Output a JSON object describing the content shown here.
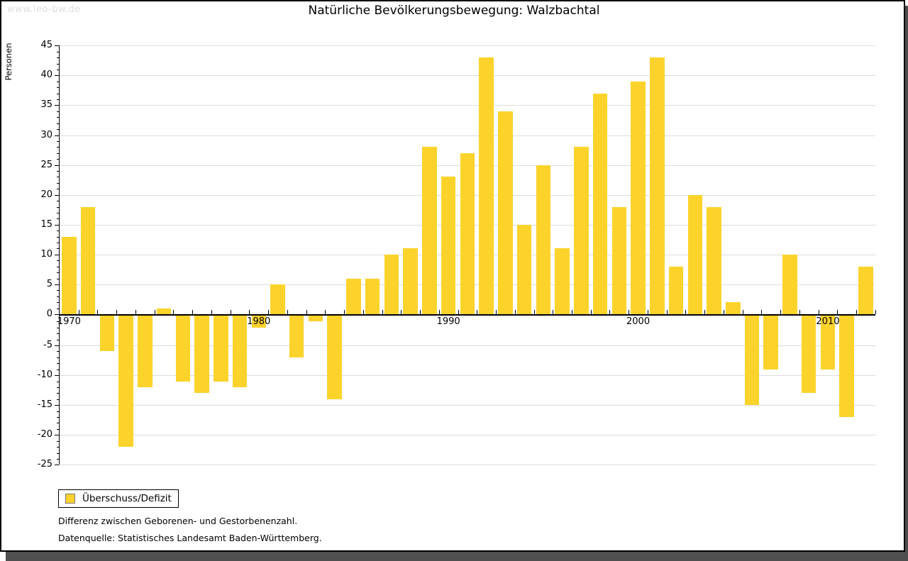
{
  "watermark": "www.leo-bw.de",
  "header": {
    "title": "Natürliche Bevölkerungsbewegung: Walzbachtal"
  },
  "legend": {
    "label": "Überschuss/Defizit"
  },
  "footnotes": [
    "Differenz zwischen Geborenen- und Gestorbenenzahl.",
    "Datenquelle: Statistisches Landesamt Baden-Württemberg."
  ],
  "colors": {
    "bar": "#fcd32b",
    "grid": "#dcdcdc",
    "axis": "#000000",
    "shadow": "#4f4f4f",
    "watermark_text": "#dedede",
    "legend_swatch_border": "#7a7a7a"
  },
  "chart_data": {
    "type": "bar",
    "title": "Natürliche Bevölkerungsbewegung: Walzbachtal",
    "xlabel": "",
    "ylabel": "Personen",
    "ylim": [
      -25,
      45
    ],
    "grid": "horizontal",
    "legend_position": "bottom-left",
    "series_name": "Überschuss/Defizit",
    "years": [
      1970,
      1971,
      1972,
      1973,
      1974,
      1975,
      1976,
      1977,
      1978,
      1979,
      1980,
      1981,
      1982,
      1983,
      1984,
      1985,
      1986,
      1987,
      1988,
      1989,
      1990,
      1991,
      1992,
      1993,
      1994,
      1995,
      1996,
      1997,
      1998,
      1999,
      2000,
      2001,
      2002,
      2003,
      2004,
      2005,
      2006,
      2007,
      2008,
      2009,
      2010,
      2011,
      2012
    ],
    "values": [
      13,
      18,
      -6,
      -22,
      -12,
      1,
      -11,
      -13,
      -11,
      -12,
      -2,
      5,
      -7,
      -1,
      -14,
      6,
      6,
      10,
      11,
      28,
      23,
      27,
      43,
      34,
      15,
      25,
      11,
      28,
      37,
      18,
      39,
      43,
      8,
      20,
      18,
      2,
      -15,
      -9,
      10,
      -13,
      -9,
      -17,
      8
    ],
    "yticks": [
      45,
      40,
      35,
      30,
      25,
      20,
      15,
      10,
      5,
      0,
      -5,
      -10,
      -15,
      -20,
      -25
    ],
    "xtick_labels": [
      "1970",
      "1980",
      "1990",
      "2000",
      "2010"
    ]
  }
}
